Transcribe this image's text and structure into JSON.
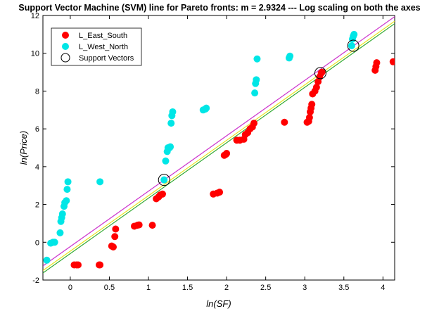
{
  "chart_data": {
    "type": "scatter",
    "title": "Support Vector Machine (SVM) line for Pareto fronts: m = 2.9324 --- Log scaling on both the axes",
    "xlabel": "ln(SF)",
    "ylabel": "ln(Price)",
    "xlim": [
      -0.35,
      4.15
    ],
    "ylim": [
      -2,
      12
    ],
    "xticks": [
      0,
      0.5,
      1,
      1.5,
      2,
      2.5,
      3,
      3.5,
      4
    ],
    "yticks": [
      -2,
      0,
      2,
      4,
      6,
      8,
      10,
      12
    ],
    "xtick_labels": [
      "0",
      "0.5",
      "1",
      "1.5",
      "2",
      "2.5",
      "3",
      "3.5",
      "4"
    ],
    "ytick_labels": [
      "-2",
      "0",
      "2",
      "4",
      "6",
      "8",
      "10",
      "12"
    ],
    "grid": false,
    "legend_position": "top-left",
    "series": [
      {
        "name": "L_East_South",
        "color": "#ff0000",
        "points": [
          [
            0.05,
            -1.2
          ],
          [
            0.08,
            -1.2
          ],
          [
            0.1,
            -1.2
          ],
          [
            0.37,
            -1.2
          ],
          [
            0.38,
            -1.2
          ],
          [
            0.53,
            -0.2
          ],
          [
            0.55,
            -0.25
          ],
          [
            0.57,
            0.3
          ],
          [
            0.58,
            0.7
          ],
          [
            0.82,
            0.85
          ],
          [
            0.86,
            0.9
          ],
          [
            0.88,
            0.92
          ],
          [
            1.05,
            0.9
          ],
          [
            1.1,
            2.3
          ],
          [
            1.13,
            2.4
          ],
          [
            1.15,
            2.5
          ],
          [
            1.18,
            2.55
          ],
          [
            1.83,
            2.55
          ],
          [
            1.88,
            2.6
          ],
          [
            1.91,
            2.65
          ],
          [
            1.97,
            4.6
          ],
          [
            1.99,
            4.65
          ],
          [
            2.0,
            4.7
          ],
          [
            2.13,
            5.4
          ],
          [
            2.17,
            5.4
          ],
          [
            2.22,
            5.45
          ],
          [
            2.24,
            5.7
          ],
          [
            2.27,
            5.8
          ],
          [
            2.3,
            6.0
          ],
          [
            2.33,
            6.1
          ],
          [
            2.35,
            6.3
          ],
          [
            2.74,
            6.35
          ],
          [
            3.03,
            6.35
          ],
          [
            3.05,
            6.4
          ],
          [
            3.06,
            6.6
          ],
          [
            3.07,
            6.9
          ],
          [
            3.08,
            7.1
          ],
          [
            3.09,
            7.3
          ],
          [
            3.1,
            7.85
          ],
          [
            3.13,
            8.0
          ],
          [
            3.15,
            8.2
          ],
          [
            3.17,
            8.5
          ],
          [
            3.19,
            8.75
          ],
          [
            3.21,
            8.95
          ],
          [
            3.22,
            9.0
          ],
          [
            3.9,
            9.1
          ],
          [
            3.91,
            9.3
          ],
          [
            3.92,
            9.5
          ],
          [
            4.13,
            9.55
          ]
        ]
      },
      {
        "name": "L_West_North",
        "color": "#00e6e6",
        "points": [
          [
            -0.3,
            -0.95
          ],
          [
            -0.25,
            -0.05
          ],
          [
            -0.22,
            0.0
          ],
          [
            -0.2,
            0.0
          ],
          [
            -0.13,
            0.5
          ],
          [
            -0.12,
            1.1
          ],
          [
            -0.11,
            1.3
          ],
          [
            -0.1,
            1.5
          ],
          [
            -0.08,
            1.9
          ],
          [
            -0.07,
            2.1
          ],
          [
            -0.05,
            2.2
          ],
          [
            -0.04,
            2.8
          ],
          [
            -0.03,
            3.2
          ],
          [
            0.38,
            3.2
          ],
          [
            1.2,
            3.3
          ],
          [
            1.22,
            4.3
          ],
          [
            1.24,
            4.8
          ],
          [
            1.25,
            5.0
          ],
          [
            1.27,
            5.0
          ],
          [
            1.28,
            5.05
          ],
          [
            1.29,
            6.3
          ],
          [
            1.3,
            6.7
          ],
          [
            1.31,
            6.9
          ],
          [
            1.7,
            7.0
          ],
          [
            1.73,
            7.05
          ],
          [
            1.74,
            7.1
          ],
          [
            2.36,
            7.9
          ],
          [
            2.37,
            8.4
          ],
          [
            2.38,
            8.6
          ],
          [
            2.39,
            9.7
          ],
          [
            2.8,
            9.75
          ],
          [
            2.81,
            9.85
          ],
          [
            3.6,
            10.4
          ],
          [
            3.61,
            10.75
          ],
          [
            3.62,
            10.9
          ],
          [
            3.63,
            11.0
          ]
        ]
      },
      {
        "name": "Support Vectors",
        "color": "#000000",
        "points": [
          [
            1.2,
            3.3
          ],
          [
            3.2,
            8.95
          ],
          [
            3.62,
            10.4
          ]
        ]
      }
    ],
    "lines": [
      {
        "color": "#cc33cc",
        "slope": 2.9324,
        "intercept": -0.23
      },
      {
        "color": "#e6e61a",
        "slope": 2.9324,
        "intercept": -0.47
      },
      {
        "color": "#33aa33",
        "slope": 2.9324,
        "intercept": -0.6
      }
    ]
  }
}
